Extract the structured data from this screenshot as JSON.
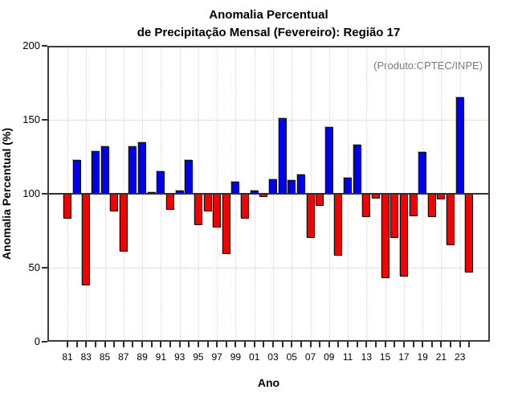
{
  "title": {
    "line1": "Anomalia Percentual",
    "line2": "de Precipitação Mensal (Fevereiro): Região 17"
  },
  "annotation": "(Produto:CPTEC/INPE)",
  "chart_data": {
    "type": "bar",
    "title": "Anomalia Percentual de Precipitação Mensal (Fevereiro): Região 17",
    "xlabel": "Ano",
    "ylabel": "Anomalia Percentual (%)",
    "ylim": [
      0,
      200
    ],
    "yticks": [
      0,
      50,
      100,
      150,
      200
    ],
    "baseline": 100,
    "grid": "dotted horizontal at 50 and 150, dotted vertical at labeled (odd) years",
    "legend_position": "none",
    "colors": {
      "above_baseline": "#0000ee",
      "below_baseline": "#f50000"
    },
    "years": [
      1981,
      1982,
      1983,
      1984,
      1985,
      1986,
      1987,
      1988,
      1989,
      1990,
      1991,
      1992,
      1993,
      1994,
      1995,
      1996,
      1997,
      1998,
      1999,
      2000,
      2001,
      2002,
      2003,
      2004,
      2005,
      2006,
      2007,
      2008,
      2009,
      2010,
      2011,
      2012,
      2013,
      2014,
      2015,
      2016,
      2017,
      2018,
      2019,
      2020,
      2021,
      2022,
      2023,
      2024
    ],
    "values": [
      83,
      123,
      38,
      129,
      132,
      88,
      61,
      132,
      135,
      101,
      115,
      89,
      102,
      123,
      79,
      88,
      77,
      59,
      108,
      83,
      102,
      98,
      110,
      151,
      109,
      113,
      70,
      92,
      145,
      58,
      111,
      133,
      84,
      97,
      43,
      70,
      44,
      85,
      128,
      84,
      96,
      65,
      165,
      47
    ],
    "xtick_labels": [
      "81",
      "83",
      "85",
      "87",
      "89",
      "91",
      "93",
      "95",
      "97",
      "99",
      "01",
      "03",
      "05",
      "07",
      "09",
      "11",
      "13",
      "15",
      "17",
      "19",
      "21",
      "23"
    ]
  }
}
